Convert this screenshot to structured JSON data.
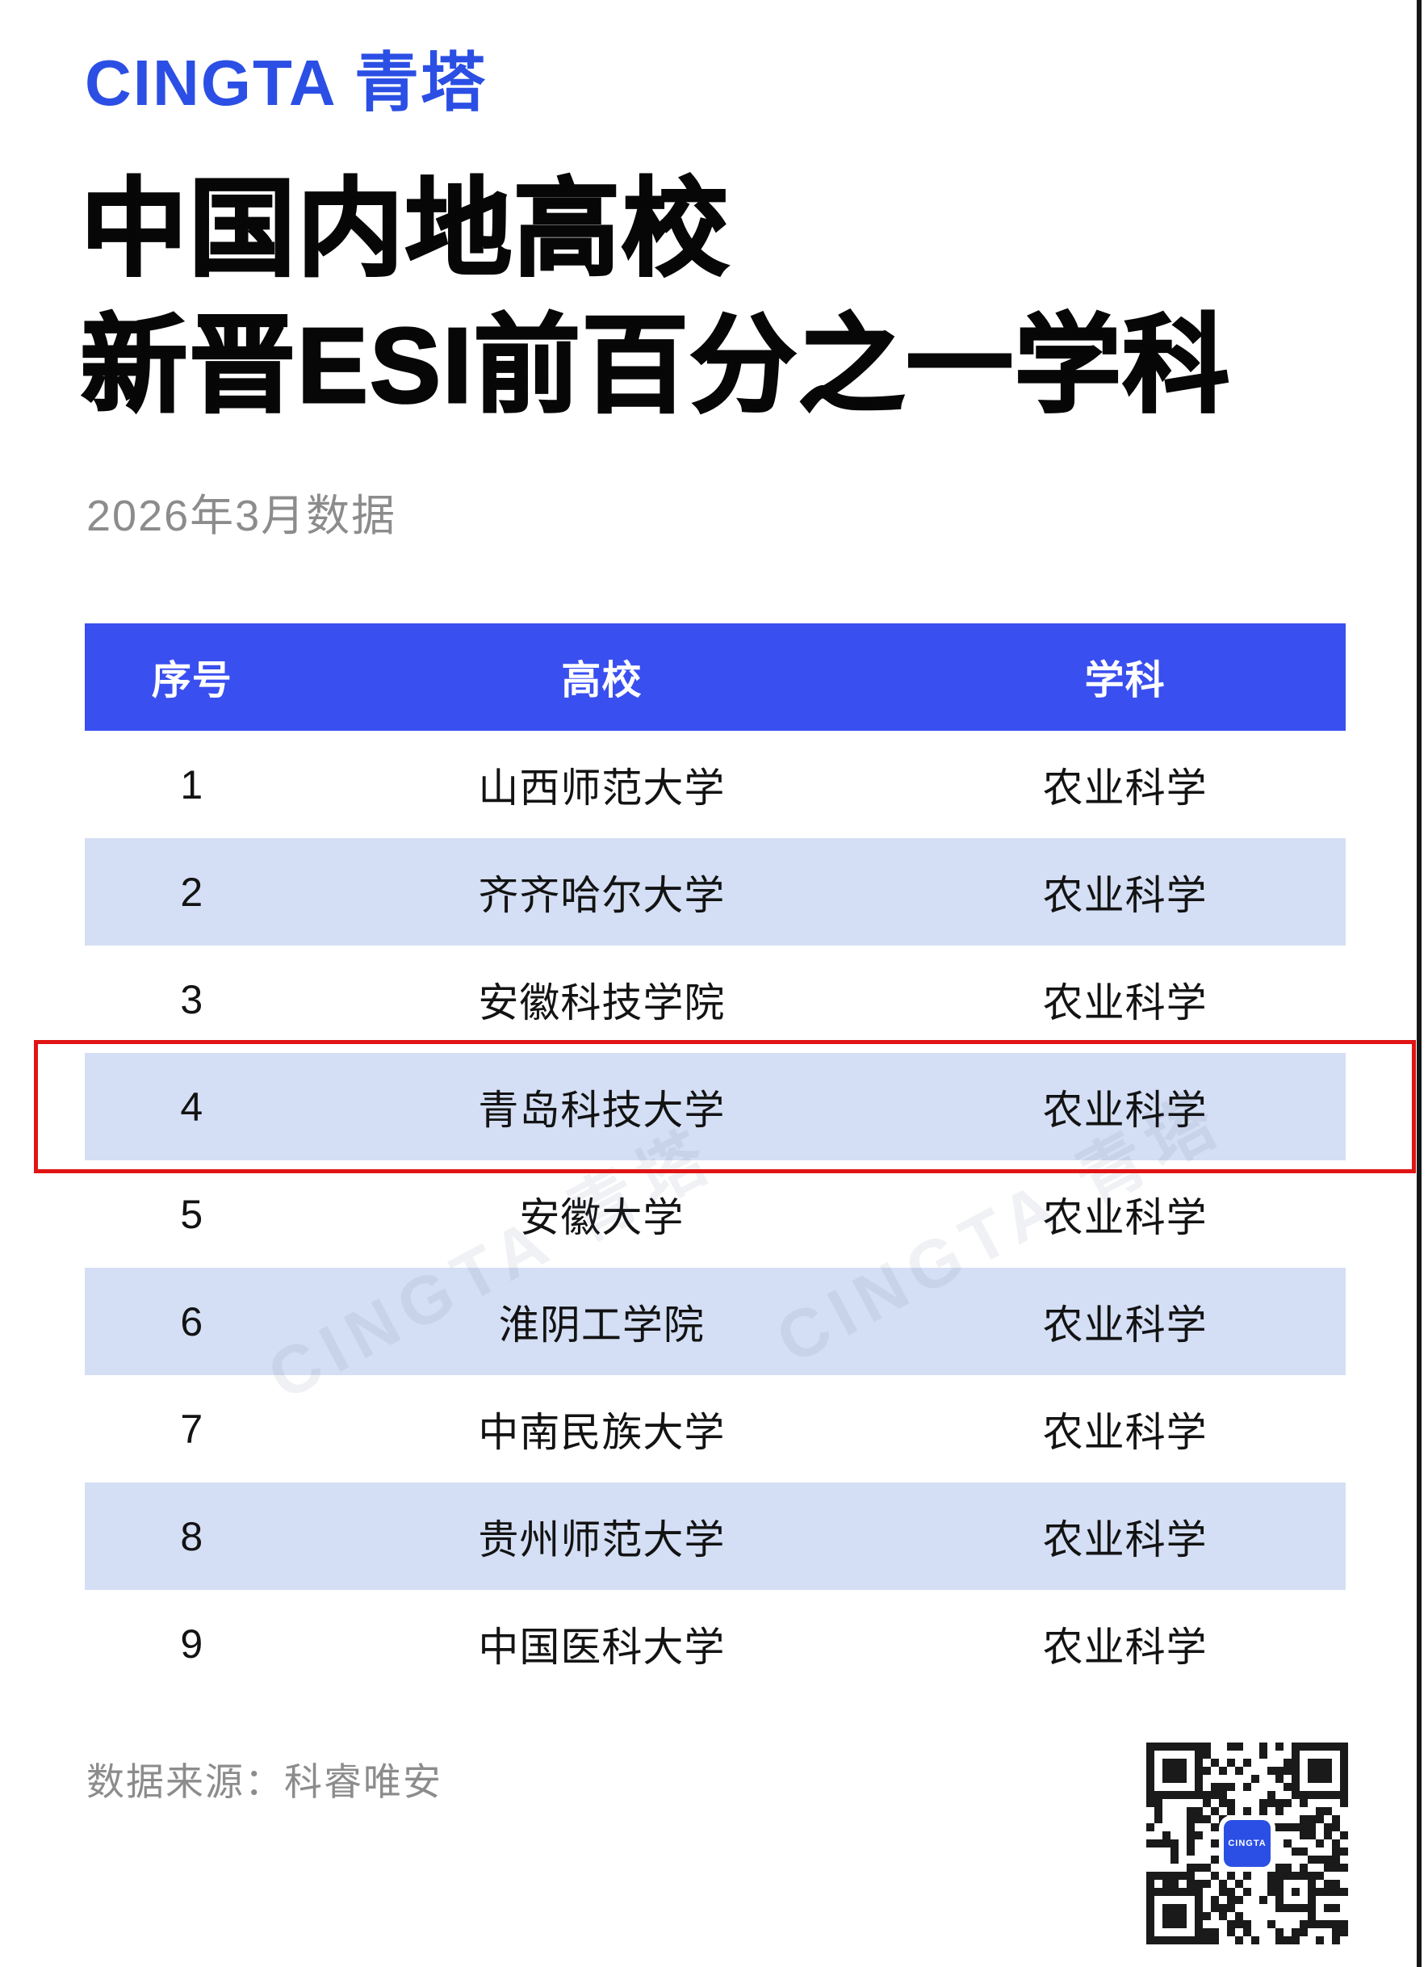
{
  "brand": {
    "logo_text": "CINGTA 青塔"
  },
  "header": {
    "title_line1": "中国内地高校",
    "title_line2": "新晋ESI前百分之一学科",
    "date_note": "2026年3月数据"
  },
  "table": {
    "columns": [
      "序号",
      "高校",
      "学科"
    ],
    "highlighted_row": 4,
    "rows": [
      {
        "rank": "1",
        "university": "山西师范大学",
        "discipline": "农业科学"
      },
      {
        "rank": "2",
        "university": "齐齐哈尔大学",
        "discipline": "农业科学"
      },
      {
        "rank": "3",
        "university": "安徽科技学院",
        "discipline": "农业科学"
      },
      {
        "rank": "4",
        "university": "青岛科技大学",
        "discipline": "农业科学"
      },
      {
        "rank": "5",
        "university": "安徽大学",
        "discipline": "农业科学"
      },
      {
        "rank": "6",
        "university": "淮阴工学院",
        "discipline": "农业科学"
      },
      {
        "rank": "7",
        "university": "中南民族大学",
        "discipline": "农业科学"
      },
      {
        "rank": "8",
        "university": "贵州师范大学",
        "discipline": "农业科学"
      },
      {
        "rank": "9",
        "university": "中国医科大学",
        "discipline": "农业科学"
      }
    ]
  },
  "watermark": {
    "text": "CINGTA 青塔"
  },
  "footer": {
    "source_note": "数据来源：科睿唯安",
    "qr_center_label": "CINGTA"
  },
  "colors": {
    "brand_blue": "#2B4FE4",
    "table_header_blue": "#3A4FEF",
    "row_alt_blue": "#D4DFF5",
    "highlight_red": "#E01414",
    "title_black": "#070707",
    "muted_gray": "#8C8C8C"
  }
}
